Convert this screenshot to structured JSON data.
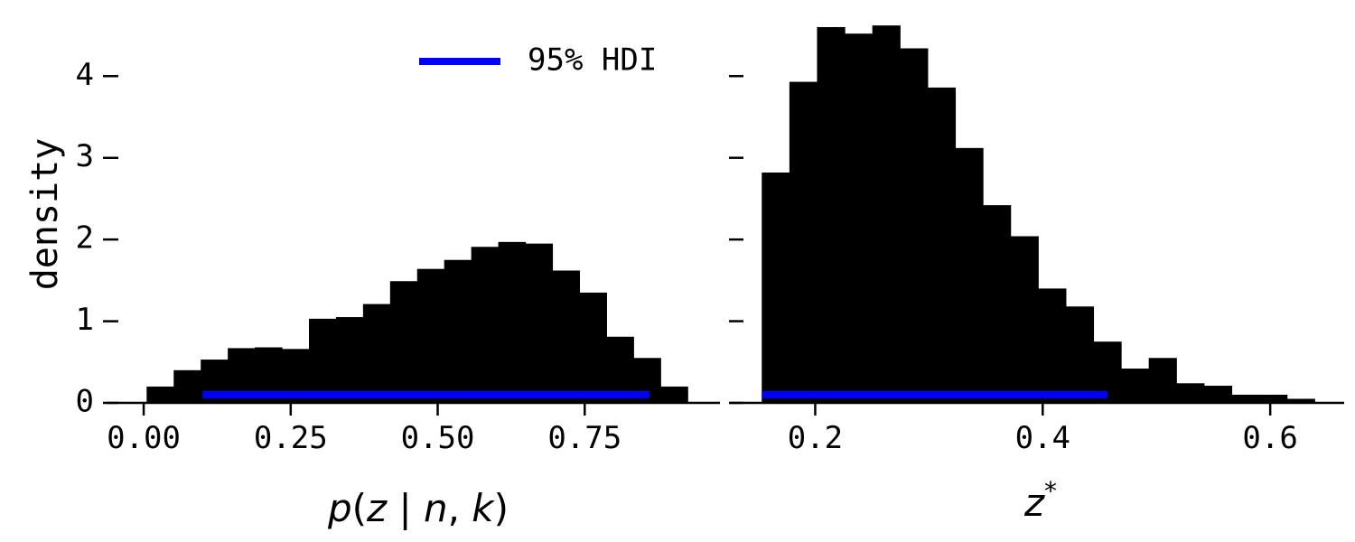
{
  "chart_data": [
    {
      "type": "bar",
      "subtype": "histogram",
      "xlabel": "p(z | n, k)",
      "ylabel": "density",
      "xlim": [
        -0.06,
        0.98
      ],
      "ylim": [
        0,
        4.6
      ],
      "x_ticks": [
        "0.00",
        "0.25",
        "0.50",
        "0.75"
      ],
      "x_tick_values": [
        0.0,
        0.25,
        0.5,
        0.75
      ],
      "y_ticks": [
        "0",
        "1",
        "2",
        "3",
        "4"
      ],
      "y_tick_values": [
        0,
        1,
        2,
        3,
        4
      ],
      "bin_edges": [
        0.005,
        0.051,
        0.097,
        0.143,
        0.189,
        0.235,
        0.281,
        0.327,
        0.373,
        0.419,
        0.465,
        0.511,
        0.557,
        0.603,
        0.649,
        0.695,
        0.741,
        0.787,
        0.833,
        0.879,
        0.925
      ],
      "values": [
        0.2,
        0.4,
        0.53,
        0.67,
        0.68,
        0.66,
        1.03,
        1.05,
        1.21,
        1.49,
        1.64,
        1.75,
        1.91,
        1.97,
        1.95,
        1.62,
        1.35,
        0.81,
        0.55,
        0.2
      ],
      "hdi": [
        0.1,
        0.86
      ],
      "hdi_y": 0.1,
      "bar_color": "#000000",
      "hdi_color": "#0000ff",
      "legend": {
        "label": "95% HDI",
        "position": "top-center"
      },
      "grid": false
    },
    {
      "type": "bar",
      "subtype": "histogram",
      "xlabel": "z*",
      "xlim": [
        0.125,
        0.665
      ],
      "ylim": [
        0,
        4.6
      ],
      "x_ticks": [
        "0.2",
        "0.4",
        "0.6"
      ],
      "x_tick_values": [
        0.2,
        0.4,
        0.6
      ],
      "y_tick_values": [
        0,
        1,
        2,
        3,
        4
      ],
      "bin_edges": [
        0.153,
        0.1773,
        0.2016,
        0.2259,
        0.2502,
        0.2745,
        0.2988,
        0.3231,
        0.3474,
        0.3717,
        0.396,
        0.4203,
        0.4446,
        0.4689,
        0.4932,
        0.5175,
        0.5418,
        0.5661,
        0.5904,
        0.6147,
        0.639
      ],
      "values": [
        2.82,
        3.93,
        4.6,
        4.52,
        4.62,
        4.34,
        3.86,
        3.12,
        2.42,
        2.04,
        1.4,
        1.18,
        0.75,
        0.42,
        0.55,
        0.24,
        0.21,
        0.1,
        0.1,
        0.05
      ],
      "hdi": [
        0.153,
        0.457
      ],
      "hdi_y": 0.1,
      "bar_color": "#000000",
      "hdi_color": "#0000ff",
      "grid": false
    }
  ]
}
